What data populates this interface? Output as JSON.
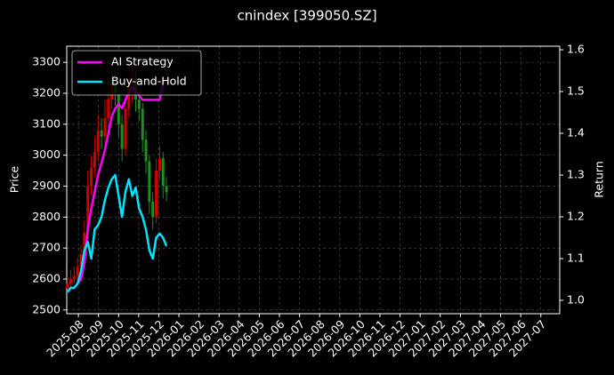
{
  "chart_data": {
    "type": "candlestick",
    "title": "cnindex [399050.SZ]",
    "ylabel": "Price",
    "y2label": "Return",
    "x": [
      -0.55,
      -0.38,
      -0.21,
      -0.04,
      0.13,
      0.3,
      0.47,
      0.64,
      0.81,
      0.98,
      1.15,
      1.32,
      1.49,
      1.66,
      1.83,
      2.0,
      2.17,
      2.34,
      2.51,
      2.68,
      2.85,
      3.02,
      3.19,
      3.36,
      3.53,
      3.7,
      3.87,
      4.04,
      4.21,
      4.38
    ],
    "open": [
      2570,
      2585,
      2600,
      2610,
      2640,
      2680,
      2750,
      2900,
      2960,
      3010,
      3080,
      3060,
      3120,
      3180,
      3230,
      3200,
      3100,
      3020,
      3150,
      3200,
      3250,
      3180,
      3150,
      3050,
      2980,
      2850,
      2800,
      2950,
      2990,
      2900
    ],
    "high": [
      2610,
      2630,
      2640,
      2670,
      2710,
      2790,
      2950,
      3000,
      3060,
      3130,
      3120,
      3180,
      3240,
      3280,
      3260,
      3220,
      3130,
      3190,
      3250,
      3300,
      3270,
      3210,
      3170,
      3080,
      3000,
      2880,
      2990,
      3030,
      3010,
      2930
    ],
    "low": [
      2555,
      2570,
      2585,
      2595,
      2620,
      2660,
      2730,
      2870,
      2930,
      2980,
      3020,
      3030,
      3090,
      3150,
      3160,
      3060,
      2980,
      3000,
      3120,
      3170,
      3140,
      3110,
      3010,
      2940,
      2810,
      2760,
      2780,
      2920,
      2860,
      2850
    ],
    "close": [
      2585,
      2600,
      2610,
      2640,
      2680,
      2750,
      2900,
      2960,
      3010,
      3080,
      3060,
      3120,
      3180,
      3230,
      3200,
      3100,
      3020,
      3150,
      3200,
      3250,
      3180,
      3150,
      3050,
      2980,
      2850,
      2800,
      2950,
      2990,
      2900,
      2880
    ],
    "up_color": "#d40000",
    "down_color": "#1f8f1f",
    "series": [
      {
        "name": "AI Strategy",
        "color": "#ff00ff",
        "axis": "y2",
        "values": [
          1.02,
          1.03,
          1.03,
          1.04,
          1.05,
          1.09,
          1.17,
          1.22,
          1.26,
          1.3,
          1.33,
          1.36,
          1.4,
          1.44,
          1.46,
          1.47,
          1.46,
          1.48,
          1.5,
          1.51,
          1.5,
          1.49,
          1.48,
          1.48,
          1.48,
          1.48,
          1.48,
          1.48,
          1.52,
          1.53
        ]
      },
      {
        "name": "Buy-and-Hold",
        "color": "#00e5ff",
        "axis": "y2",
        "values": [
          1.02,
          1.03,
          1.03,
          1.04,
          1.07,
          1.12,
          1.14,
          1.1,
          1.17,
          1.18,
          1.2,
          1.24,
          1.27,
          1.29,
          1.3,
          1.25,
          1.2,
          1.26,
          1.29,
          1.25,
          1.27,
          1.22,
          1.2,
          1.17,
          1.12,
          1.1,
          1.15,
          1.16,
          1.15,
          1.13
        ]
      }
    ],
    "xlim": [
      -0.58,
      23.94
    ],
    "xticks": [
      {
        "value": 0,
        "label": "2025-08"
      },
      {
        "value": 1,
        "label": "2025-09"
      },
      {
        "value": 2,
        "label": "2025-10"
      },
      {
        "value": 3,
        "label": "2025-11"
      },
      {
        "value": 4,
        "label": "2025-12"
      },
      {
        "value": 5,
        "label": "2026-01"
      },
      {
        "value": 6,
        "label": "2026-02"
      },
      {
        "value": 7,
        "label": "2026-03"
      },
      {
        "value": 8,
        "label": "2026-04"
      },
      {
        "value": 9,
        "label": "2026-05"
      },
      {
        "value": 10,
        "label": "2026-06"
      },
      {
        "value": 11,
        "label": "2026-07"
      },
      {
        "value": 12,
        "label": "2026-08"
      },
      {
        "value": 13,
        "label": "2026-09"
      },
      {
        "value": 14,
        "label": "2026-10"
      },
      {
        "value": 15,
        "label": "2026-11"
      },
      {
        "value": 16,
        "label": "2026-12"
      },
      {
        "value": 17,
        "label": "2027-01"
      },
      {
        "value": 18,
        "label": "2027-02"
      },
      {
        "value": 19,
        "label": "2027-03"
      },
      {
        "value": 20,
        "label": "2027-04"
      },
      {
        "value": 21,
        "label": "2027-05"
      },
      {
        "value": 22,
        "label": "2027-06"
      },
      {
        "value": 23,
        "label": "2027-07"
      }
    ],
    "ylim": [
      2488,
      3352
    ],
    "yticks": [
      2500,
      2600,
      2700,
      2800,
      2900,
      3000,
      3100,
      3200,
      3300
    ],
    "y2lim": [
      0.968,
      1.6085
    ],
    "y2ticks": [
      {
        "value": 1,
        "label": "1.0"
      },
      1.1,
      1.2,
      1.3,
      1.4,
      1.5,
      1.6
    ],
    "grid": true,
    "legend": "upper left"
  }
}
